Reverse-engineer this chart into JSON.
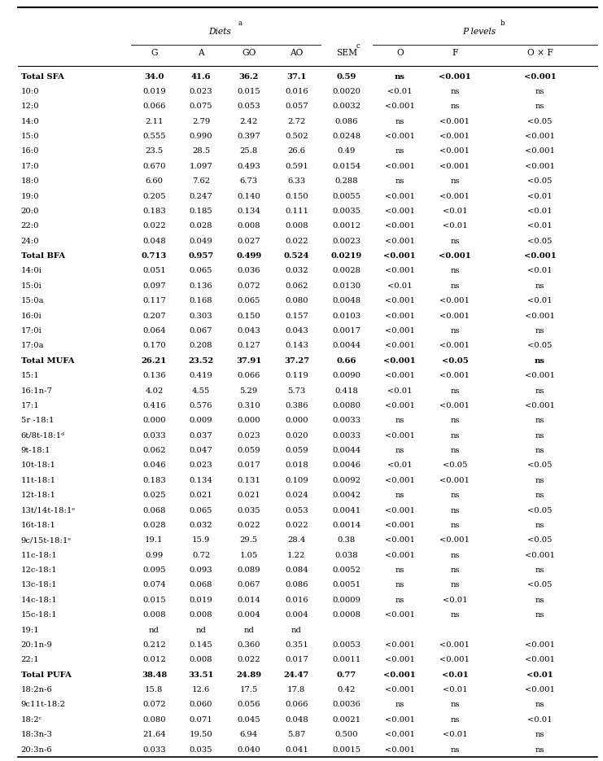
{
  "rows": [
    [
      "Total SFA",
      "34.0",
      "41.6",
      "36.2",
      "37.1",
      "0.59",
      "ns",
      "<0.001",
      "<0.001"
    ],
    [
      "10:0",
      "0.019",
      "0.023",
      "0.015",
      "0.016",
      "0.0020",
      "<0.01",
      "ns",
      "ns"
    ],
    [
      "12:0",
      "0.066",
      "0.075",
      "0.053",
      "0.057",
      "0.0032",
      "<0.001",
      "ns",
      "ns"
    ],
    [
      "14:0",
      "2.11",
      "2.79",
      "2.42",
      "2.72",
      "0.086",
      "ns",
      "<0.001",
      "<0.05"
    ],
    [
      "15:0",
      "0.555",
      "0.990",
      "0.397",
      "0.502",
      "0.0248",
      "<0.001",
      "<0.001",
      "<0.001"
    ],
    [
      "16:0",
      "23.5",
      "28.5",
      "25.8",
      "26.6",
      "0.49",
      "ns",
      "<0.001",
      "<0.001"
    ],
    [
      "17:0",
      "0.670",
      "1.097",
      "0.493",
      "0.591",
      "0.0154",
      "<0.001",
      "<0.001",
      "<0.001"
    ],
    [
      "18:0",
      "6.60",
      "7.62",
      "6.73",
      "6.33",
      "0.288",
      "ns",
      "ns",
      "<0.05"
    ],
    [
      "19:0",
      "0.205",
      "0.247",
      "0.140",
      "0.150",
      "0.0055",
      "<0.001",
      "<0.001",
      "<0.01"
    ],
    [
      "20:0",
      "0.183",
      "0.185",
      "0.134",
      "0.111",
      "0.0035",
      "<0.001",
      "<0.01",
      "<0.01"
    ],
    [
      "22:0",
      "0.022",
      "0.028",
      "0.008",
      "0.008",
      "0.0012",
      "<0.001",
      "<0.01",
      "<0.01"
    ],
    [
      "24:0",
      "0.048",
      "0.049",
      "0.027",
      "0.022",
      "0.0023",
      "<0.001",
      "ns",
      "<0.05"
    ],
    [
      "Total BFA",
      "0.713",
      "0.957",
      "0.499",
      "0.524",
      "0.0219",
      "<0.001",
      "<0.001",
      "<0.001"
    ],
    [
      "14:0i",
      "0.051",
      "0.065",
      "0.036",
      "0.032",
      "0.0028",
      "<0.001",
      "ns",
      "<0.01"
    ],
    [
      "15:0i",
      "0.097",
      "0.136",
      "0.072",
      "0.062",
      "0.0130",
      "<0.01",
      "ns",
      "ns"
    ],
    [
      "15:0a",
      "0.117",
      "0.168",
      "0.065",
      "0.080",
      "0.0048",
      "<0.001",
      "<0.001",
      "<0.01"
    ],
    [
      "16:0i",
      "0.207",
      "0.303",
      "0.150",
      "0.157",
      "0.0103",
      "<0.001",
      "<0.001",
      "<0.001"
    ],
    [
      "17:0i",
      "0.064",
      "0.067",
      "0.043",
      "0.043",
      "0.0017",
      "<0.001",
      "ns",
      "ns"
    ],
    [
      "17:0a",
      "0.170",
      "0.208",
      "0.127",
      "0.143",
      "0.0044",
      "<0.001",
      "<0.001",
      "<0.05"
    ],
    [
      "Total MUFA",
      "26.21",
      "23.52",
      "37.91",
      "37.27",
      "0.66",
      "<0.001",
      "<0.05",
      "ns"
    ],
    [
      "15:1",
      "0.136",
      "0.419",
      "0.066",
      "0.119",
      "0.0090",
      "<0.001",
      "<0.001",
      "<0.001"
    ],
    [
      "16:1n-7",
      "4.02",
      "4.55",
      "5.29",
      "5.73",
      "0.418",
      "<0.01",
      "ns",
      "ns"
    ],
    [
      "17:1",
      "0.416",
      "0.576",
      "0.310",
      "0.386",
      "0.0080",
      "<0.001",
      "<0.001",
      "<0.001"
    ],
    [
      "5r -18:1",
      "0.000",
      "0.009",
      "0.000",
      "0.000",
      "0.0033",
      "ns",
      "ns",
      "ns"
    ],
    [
      "6t/8t-18:1ᵈ",
      "0.033",
      "0.037",
      "0.023",
      "0.020",
      "0.0033",
      "<0.001",
      "ns",
      "ns"
    ],
    [
      "9t-18:1",
      "0.062",
      "0.047",
      "0.059",
      "0.059",
      "0.0044",
      "ns",
      "ns",
      "ns"
    ],
    [
      "10t-18:1",
      "0.046",
      "0.023",
      "0.017",
      "0.018",
      "0.0046",
      "<0.01",
      "<0.05",
      "<0.05"
    ],
    [
      "11t-18:1",
      "0.183",
      "0.134",
      "0.131",
      "0.109",
      "0.0092",
      "<0.001",
      "<0.001",
      "ns"
    ],
    [
      "12t-18:1",
      "0.025",
      "0.021",
      "0.021",
      "0.024",
      "0.0042",
      "ns",
      "ns",
      "ns"
    ],
    [
      "13t/14t-18:1ᵉ",
      "0.068",
      "0.065",
      "0.035",
      "0.053",
      "0.0041",
      "<0.001",
      "ns",
      "<0.05"
    ],
    [
      "16t-18:1",
      "0.028",
      "0.032",
      "0.022",
      "0.022",
      "0.0014",
      "<0.001",
      "ns",
      "ns"
    ],
    [
      "9c/15t-18:1ᵉ",
      "19.1",
      "15.9",
      "29.5",
      "28.4",
      "0.38",
      "<0.001",
      "<0.001",
      "<0.05"
    ],
    [
      "11c-18:1",
      "0.99",
      "0.72",
      "1.05",
      "1.22",
      "0.038",
      "<0.001",
      "ns",
      "<0.001"
    ],
    [
      "12c-18:1",
      "0.095",
      "0.093",
      "0.089",
      "0.084",
      "0.0052",
      "ns",
      "ns",
      "ns"
    ],
    [
      "13c-18:1",
      "0.074",
      "0.068",
      "0.067",
      "0.086",
      "0.0051",
      "ns",
      "ns",
      "<0.05"
    ],
    [
      "14c-18:1",
      "0.015",
      "0.019",
      "0.014",
      "0.016",
      "0.0009",
      "ns",
      "<0.01",
      "ns"
    ],
    [
      "15c-18:1",
      "0.008",
      "0.008",
      "0.004",
      "0.004",
      "0.0008",
      "<0.001",
      "ns",
      "ns"
    ],
    [
      "19:1",
      "nd",
      "nd",
      "nd",
      "nd",
      "",
      "",
      "",
      ""
    ],
    [
      "20:1n-9",
      "0.212",
      "0.145",
      "0.360",
      "0.351",
      "0.0053",
      "<0.001",
      "<0.001",
      "<0.001"
    ],
    [
      "22:1",
      "0.012",
      "0.008",
      "0.022",
      "0.017",
      "0.0011",
      "<0.001",
      "<0.001",
      "<0.001"
    ],
    [
      "Total PUFA",
      "38.48",
      "33.51",
      "24.89",
      "24.47",
      "0.77",
      "<0.001",
      "<0.01",
      "<0.01"
    ],
    [
      "18:2n-6",
      "15.8",
      "12.6",
      "17.5",
      "17.8",
      "0.42",
      "<0.001",
      "<0.01",
      "<0.001"
    ],
    [
      "9c11t-18:2",
      "0.072",
      "0.060",
      "0.056",
      "0.066",
      "0.0036",
      "ns",
      "ns",
      "ns"
    ],
    [
      "18:2ᶜ",
      "0.080",
      "0.071",
      "0.045",
      "0.048",
      "0.0021",
      "<0.001",
      "ns",
      "<0.01"
    ],
    [
      "18:3n-3",
      "21.64",
      "19.50",
      "6.94",
      "5.87",
      "0.500",
      "<0.001",
      "<0.01",
      "ns"
    ],
    [
      "20:3n-6",
      "0.033",
      "0.035",
      "0.040",
      "0.041",
      "0.0015",
      "<0.001",
      "ns",
      "ns"
    ]
  ],
  "bold_rows": [
    0,
    12,
    19,
    40
  ],
  "font_size": 7.2,
  "bg_color": "#ffffff"
}
